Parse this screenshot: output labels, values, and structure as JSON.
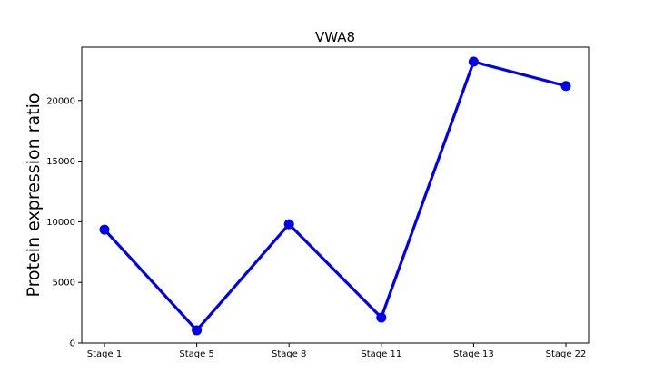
{
  "chart_data": {
    "type": "line",
    "title": "VWA8",
    "xlabel": "",
    "ylabel": "Protein expression ratio",
    "categories": [
      "Stage 1",
      "Stage 5",
      "Stage 8",
      "Stage 11",
      "Stage 13",
      "Stage 22"
    ],
    "series": [
      {
        "values": [
          9350,
          1050,
          9800,
          2100,
          23200,
          21200
        ],
        "color": "#0000ee"
      }
    ],
    "ylim": [
      0,
      24400
    ],
    "yticks": [
      0,
      5000,
      10000,
      15000,
      20000
    ],
    "ytick_labels": [
      "0",
      "5000",
      "10000",
      "15000",
      "20000"
    ],
    "grid": false,
    "legend": "none"
  }
}
